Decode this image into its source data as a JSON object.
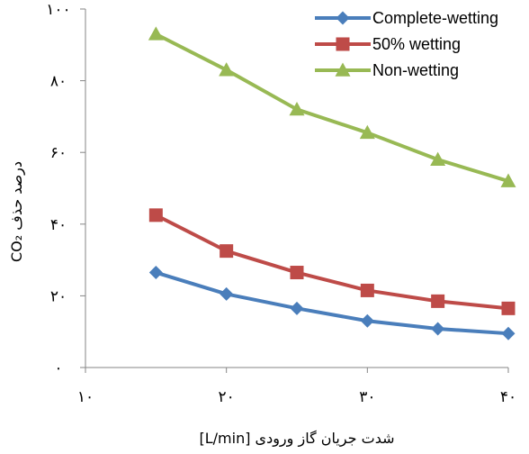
{
  "chart_data": {
    "type": "line",
    "xlabel": "شدت جریان گاز ورودی [L/min]",
    "ylabel": "درصد حذف CO₂",
    "xlim": [
      10,
      40
    ],
    "ylim": [
      0,
      100
    ],
    "x_ticks": [
      10,
      20,
      30,
      40
    ],
    "y_ticks": [
      0,
      20,
      40,
      60,
      80,
      100
    ],
    "x_tick_labels": [
      "۱۰",
      "۲۰",
      "۳۰",
      "۴۰"
    ],
    "y_tick_labels": [
      "۰",
      "۲۰",
      "۴۰",
      "۶۰",
      "۸۰",
      "۱۰۰"
    ],
    "grid": false,
    "legend_position": "top-right",
    "series": [
      {
        "name": "Complete-wetting",
        "color": "#4a7ebb",
        "marker": "diamond",
        "x": [
          15,
          20,
          25,
          30,
          35,
          40
        ],
        "y": [
          26.5,
          20.5,
          16.5,
          13,
          10.8,
          9.5
        ]
      },
      {
        "name": "50% wetting",
        "color": "#be4b48",
        "marker": "square",
        "x": [
          15,
          20,
          25,
          30,
          35,
          40
        ],
        "y": [
          42.5,
          32.5,
          26.5,
          21.5,
          18.5,
          16.5
        ]
      },
      {
        "name": "Non-wetting",
        "color": "#98b954",
        "marker": "triangle",
        "x": [
          15,
          20,
          25,
          30,
          35,
          40
        ],
        "y": [
          93,
          83,
          72,
          65.5,
          58,
          52
        ]
      }
    ]
  }
}
